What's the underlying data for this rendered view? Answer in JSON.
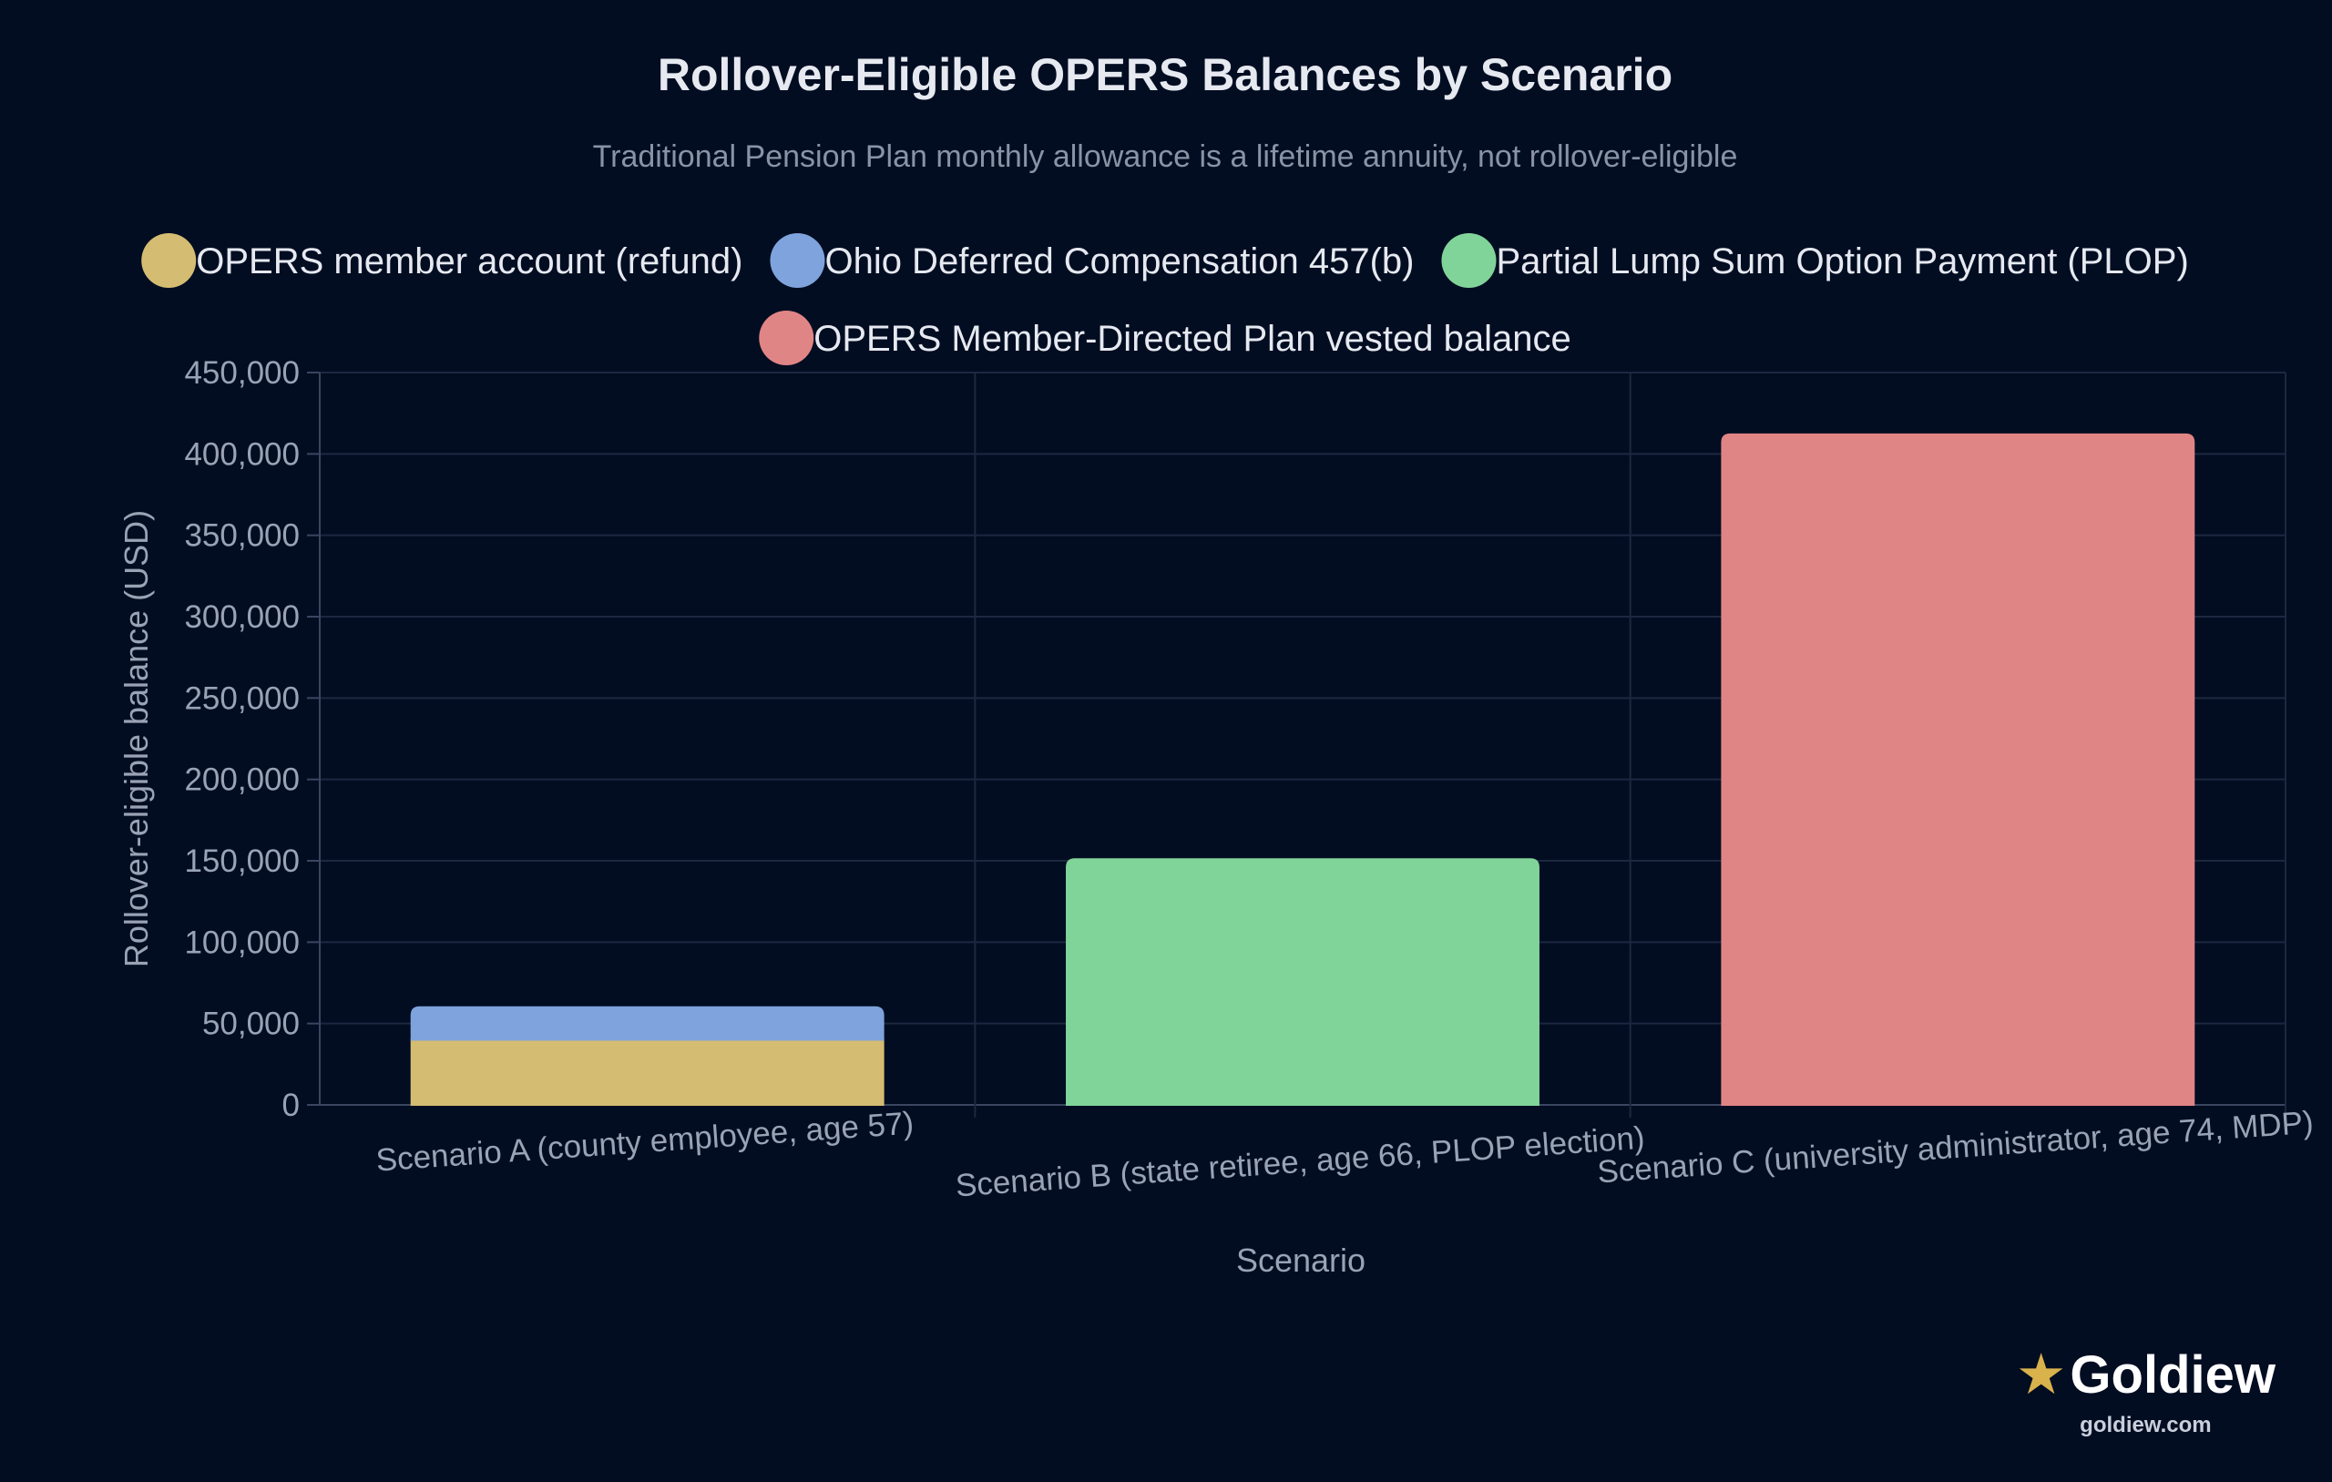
{
  "chart_data": {
    "type": "bar",
    "stacked": true,
    "title": "Rollover-Eligible OPERS Balances by Scenario",
    "subtitle": "Traditional Pension Plan monthly allowance is a lifetime annuity, not rollover-eligible",
    "xlabel": "Scenario",
    "ylabel": "Rollover-eligible balance (USD)",
    "ylim": [
      0,
      450000
    ],
    "yticks": [
      0,
      50000,
      100000,
      150000,
      200000,
      250000,
      300000,
      350000,
      400000,
      450000
    ],
    "ytick_labels": [
      "0",
      "50,000",
      "100,000",
      "150,000",
      "200,000",
      "250,000",
      "300,000",
      "350,000",
      "400,000",
      "450,000"
    ],
    "categories": [
      "Scenario A (county employee, age 57)",
      "Scenario B (state retiree, age 66, PLOP election)",
      "Scenario C (university administrator, age 74, MDP)"
    ],
    "series": [
      {
        "name": "OPERS member account (refund)",
        "color": "#d4bc72",
        "values": [
          40000,
          0,
          0
        ]
      },
      {
        "name": "Ohio Deferred Compensation 457(b)",
        "color": "#7fa3dc",
        "values": [
          20000,
          0,
          0
        ]
      },
      {
        "name": "Partial Lump Sum Option Payment (PLOP)",
        "color": "#81d499",
        "values": [
          0,
          151000,
          0
        ]
      },
      {
        "name": "OPERS Member-Directed Plan vested balance",
        "color": "#e08585",
        "values": [
          0,
          0,
          412000
        ]
      }
    ],
    "grid": true,
    "legend_position": "top"
  },
  "brand": {
    "name": "Goldiew",
    "url": "goldiew.com",
    "icon": "star-icon"
  }
}
